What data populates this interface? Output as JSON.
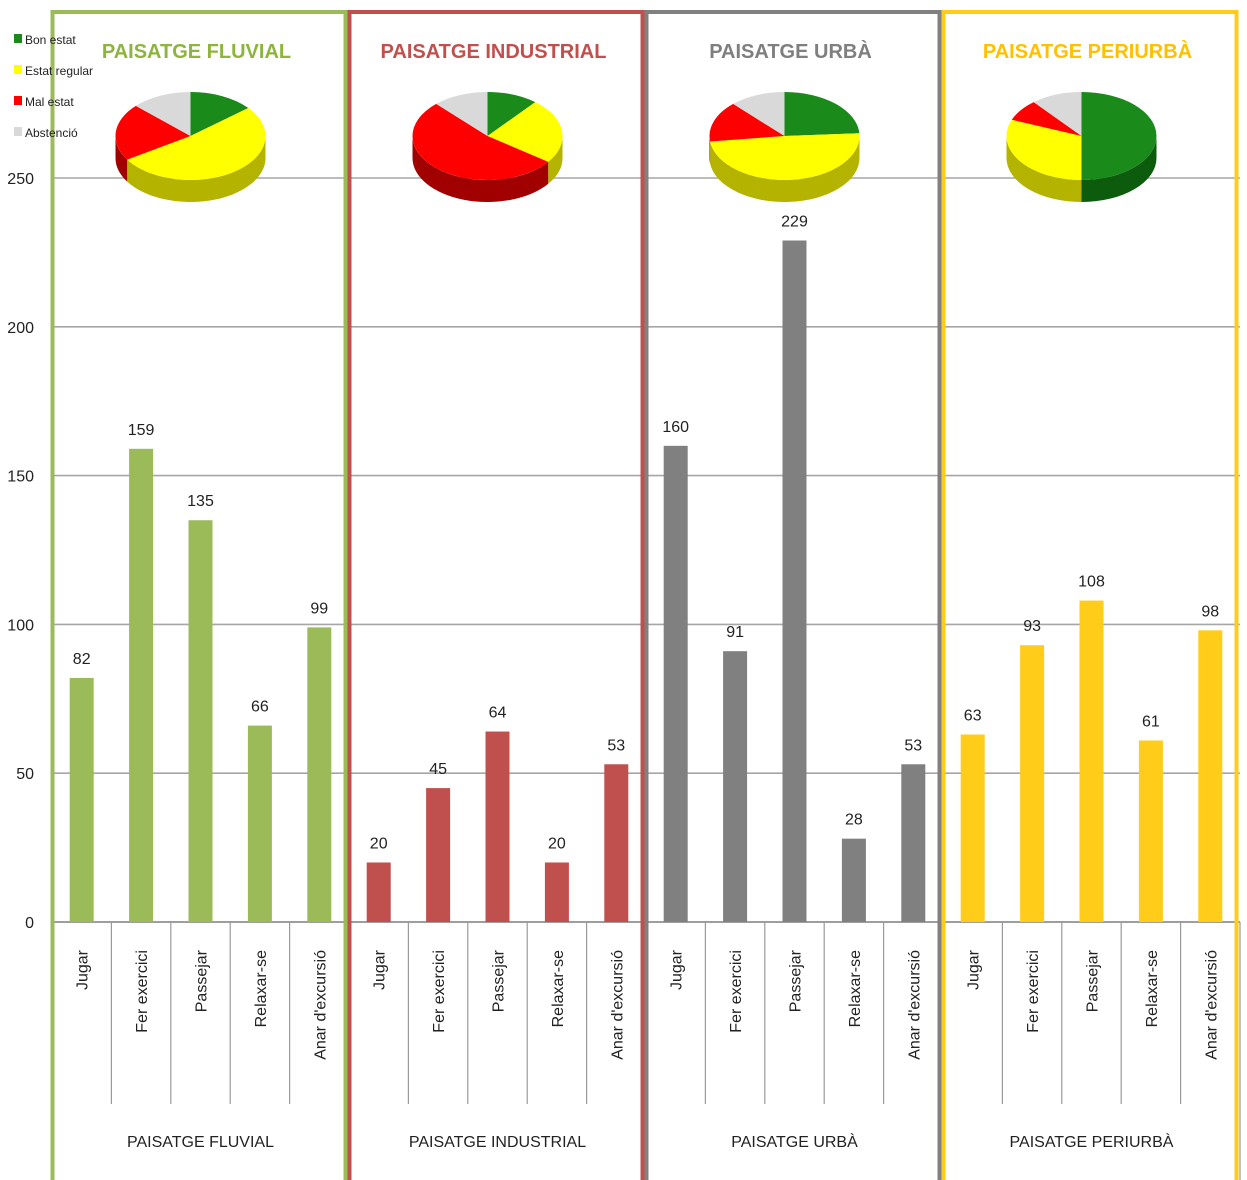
{
  "legend": [
    {
      "label": "Bon estat",
      "color": "#1a8a1a"
    },
    {
      "label": "Estat regular",
      "color": "#ffff00"
    },
    {
      "label": "Mal estat",
      "color": "#ff0000"
    },
    {
      "label": "Abstenció",
      "color": "#d9d9d9"
    }
  ],
  "chart_data": {
    "type": "bar",
    "ylim": [
      0,
      250
    ],
    "yticks": [
      0,
      50,
      100,
      150,
      200,
      250
    ],
    "grid": true,
    "categories": [
      "Jugar",
      "Fer exercici",
      "Passejar",
      "Relaxar-se",
      "Anar d'excursió"
    ],
    "groups": [
      {
        "name": "PAISATGE FLUVIAL",
        "label": "PAISATGE FLUVIAL",
        "color": "#9bbb59",
        "title_color": "#8db43e",
        "values": [
          82,
          159,
          135,
          66,
          99
        ],
        "pie": [
          14,
          52,
          21,
          13
        ]
      },
      {
        "name": "PAISATGE INDUSTRIAL",
        "label": "PAISATGE INDUSTRIAL",
        "color": "#c0504d",
        "title_color": "#c0504d",
        "values": [
          20,
          45,
          64,
          20,
          53
        ],
        "pie": [
          11,
          24,
          53,
          12
        ]
      },
      {
        "name": "PAISATGE URBÀ",
        "label": "PAISATGE URBÀ",
        "color": "#808080",
        "title_color": "#7f7f7f",
        "values": [
          160,
          91,
          229,
          28,
          53
        ],
        "pie": [
          24,
          49,
          15,
          12
        ]
      },
      {
        "name": "PAISATGE PERIURBÀ",
        "label": "PAISATGE PERIURBÀ",
        "color": "#ffcc1a",
        "title_color": "#ffc000",
        "values": [
          63,
          93,
          108,
          61,
          98
        ],
        "pie": [
          50,
          31,
          8,
          11
        ]
      }
    ]
  }
}
